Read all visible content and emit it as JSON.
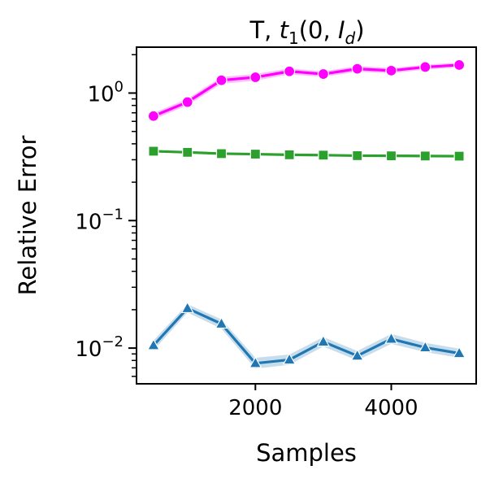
{
  "chart_data": {
    "type": "line",
    "title_prefix": "T, ",
    "title_math": "t",
    "title_sub": "1",
    "title_args": "(0, ",
    "title_I": "I",
    "title_I_sub": "d",
    "title_close": ")",
    "xlabel": "Samples",
    "ylabel": "Relative Error",
    "x": [
      500,
      1000,
      1500,
      2000,
      2500,
      3000,
      3500,
      4000,
      4500,
      5000
    ],
    "xlim": [
      250,
      5250
    ],
    "ylim_log10": [
      -2.28,
      0.36
    ],
    "xticks": [
      2000,
      4000
    ],
    "xtick_labels": [
      "2000",
      "4000"
    ],
    "yticks_major": [
      {
        "value": 1,
        "base": "10",
        "exp": "0"
      },
      {
        "value": 0.1,
        "base": "10",
        "exp": "−1"
      },
      {
        "value": 0.01,
        "base": "10",
        "exp": "−2"
      }
    ],
    "series": [
      {
        "name": "magenta-circles",
        "color": "#ff00ff",
        "band_color": "#ff00ff",
        "marker": "circle",
        "values": [
          0.66,
          0.85,
          1.26,
          1.33,
          1.48,
          1.41,
          1.55,
          1.5,
          1.6,
          1.66
        ],
        "lower": [
          0.62,
          0.8,
          1.18,
          1.25,
          1.4,
          1.34,
          1.47,
          1.43,
          1.53,
          1.59
        ],
        "upper": [
          0.7,
          0.9,
          1.34,
          1.41,
          1.56,
          1.48,
          1.63,
          1.57,
          1.67,
          1.73
        ]
      },
      {
        "name": "green-squares",
        "color": "#2ca02c",
        "band_color": "#2ca02c",
        "marker": "square",
        "values": [
          0.35,
          0.343,
          0.335,
          0.332,
          0.328,
          0.326,
          0.323,
          0.322,
          0.321,
          0.32
        ],
        "lower": [
          0.344,
          0.337,
          0.33,
          0.327,
          0.323,
          0.321,
          0.318,
          0.317,
          0.316,
          0.315
        ],
        "upper": [
          0.356,
          0.349,
          0.34,
          0.337,
          0.333,
          0.331,
          0.328,
          0.327,
          0.326,
          0.325
        ]
      },
      {
        "name": "blue-triangles",
        "color": "#1f77b4",
        "band_color": "#1f77b4",
        "marker": "triangle",
        "values": [
          0.0105,
          0.0205,
          0.0155,
          0.0076,
          0.0081,
          0.0112,
          0.0087,
          0.0118,
          0.0101,
          0.0091
        ],
        "lower": [
          0.0096,
          0.019,
          0.0142,
          0.0069,
          0.0074,
          0.0103,
          0.008,
          0.0108,
          0.0093,
          0.0084
        ],
        "upper": [
          0.0115,
          0.0221,
          0.0168,
          0.0084,
          0.0089,
          0.0122,
          0.0095,
          0.0129,
          0.011,
          0.0099
        ]
      }
    ]
  }
}
